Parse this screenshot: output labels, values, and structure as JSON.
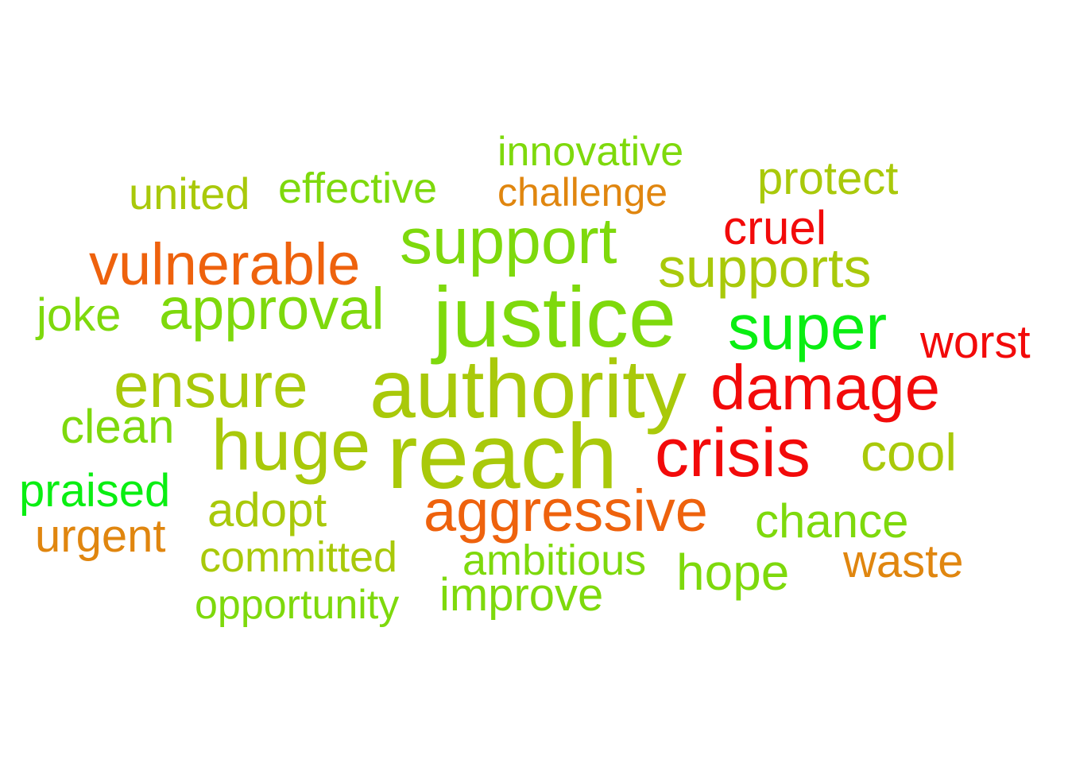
{
  "words": {
    "innovative": {
      "text": "innovative",
      "color": "#7ed90c"
    },
    "united": {
      "text": "united",
      "color": "#a9c90a"
    },
    "effective": {
      "text": "effective",
      "color": "#7ed90c"
    },
    "challenge": {
      "text": "challenge",
      "color": "#e0860f"
    },
    "protect": {
      "text": "protect",
      "color": "#a9c90a"
    },
    "cruel": {
      "text": "cruel",
      "color": "#f20a0a"
    },
    "support": {
      "text": "support",
      "color": "#7ed90c"
    },
    "vulnerable": {
      "text": "vulnerable",
      "color": "#ee620d"
    },
    "supports": {
      "text": "supports",
      "color": "#a9c90a"
    },
    "joke": {
      "text": "joke",
      "color": "#7ed90c"
    },
    "approval": {
      "text": "approval",
      "color": "#7ed90c"
    },
    "justice": {
      "text": "justice",
      "color": "#7ed90c"
    },
    "super": {
      "text": "super",
      "color": "#0aee12"
    },
    "worst": {
      "text": "worst",
      "color": "#f20a0a"
    },
    "ensure": {
      "text": "ensure",
      "color": "#a9c90a"
    },
    "authority": {
      "text": "authority",
      "color": "#a9c90a"
    },
    "damage": {
      "text": "damage",
      "color": "#f20a0a"
    },
    "clean": {
      "text": "clean",
      "color": "#7ed90c"
    },
    "huge": {
      "text": "huge",
      "color": "#a9c90a"
    },
    "reach": {
      "text": "reach",
      "color": "#a9c90a"
    },
    "crisis": {
      "text": "crisis",
      "color": "#f20a0a"
    },
    "cool": {
      "text": "cool",
      "color": "#a9c90a"
    },
    "praised": {
      "text": "praised",
      "color": "#0aee12"
    },
    "adopt": {
      "text": "adopt",
      "color": "#a9c90a"
    },
    "aggressive": {
      "text": "aggressive",
      "color": "#ee620d"
    },
    "chance": {
      "text": "chance",
      "color": "#7ed90c"
    },
    "urgent": {
      "text": "urgent",
      "color": "#e0860f"
    },
    "committed": {
      "text": "committed",
      "color": "#a9c90a"
    },
    "ambitious": {
      "text": "ambitious",
      "color": "#7ed90c"
    },
    "hope": {
      "text": "hope",
      "color": "#7ed90c"
    },
    "waste": {
      "text": "waste",
      "color": "#e0860f"
    },
    "improve": {
      "text": "improve",
      "color": "#7ed90c"
    },
    "opportunity": {
      "text": "opportunity",
      "color": "#7ed90c"
    }
  }
}
